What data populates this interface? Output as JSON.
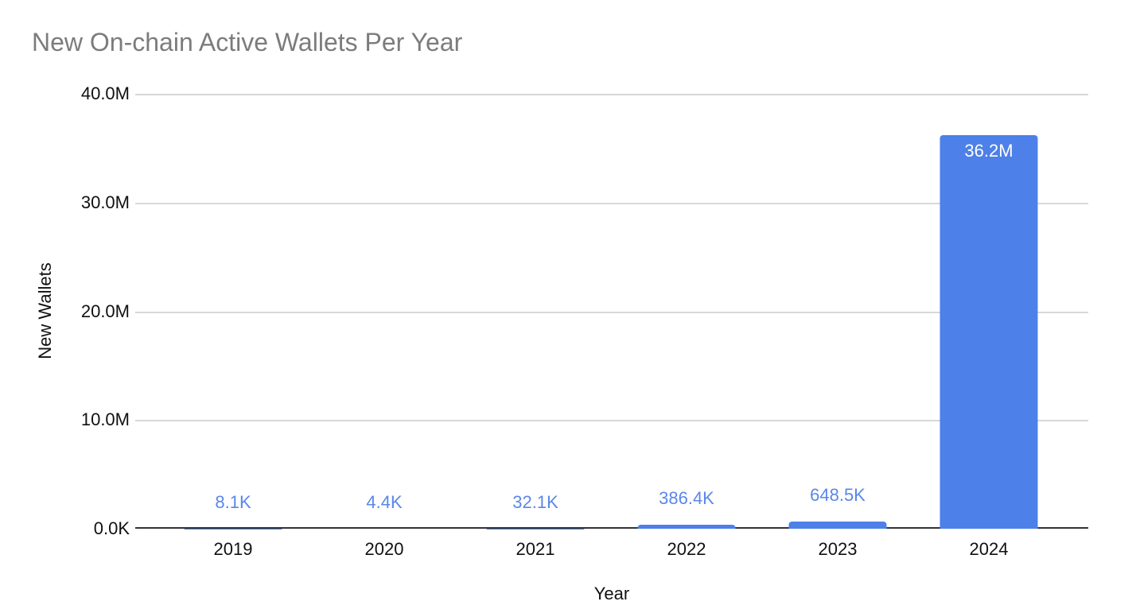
{
  "chart_data": {
    "type": "bar",
    "title": "New On-chain Active Wallets Per Year",
    "xlabel": "Year",
    "ylabel": "New Wallets",
    "categories": [
      "2019",
      "2020",
      "2021",
      "2022",
      "2023",
      "2024"
    ],
    "values": [
      8100,
      4400,
      32100,
      386400,
      648500,
      36200000
    ],
    "data_labels": [
      "8.1K",
      "4.4K",
      "32.1K",
      "386.4K",
      "648.5K",
      "36.2M"
    ],
    "ytick_labels": [
      "40.0M",
      "30.0M",
      "20.0M",
      "10.0M",
      "0.0K"
    ],
    "ylim": [
      0,
      40000000
    ],
    "grid": true,
    "legend": "none",
    "colors": {
      "bar": "#4d80e8",
      "data_label": "#5b87ea",
      "data_label_inside": "#ffffff",
      "title_text": "#7c7c7c",
      "axis_text": "#111111",
      "gridline": "#d8d8d8",
      "axis_line": "#333333",
      "background": "#ffffff"
    }
  }
}
